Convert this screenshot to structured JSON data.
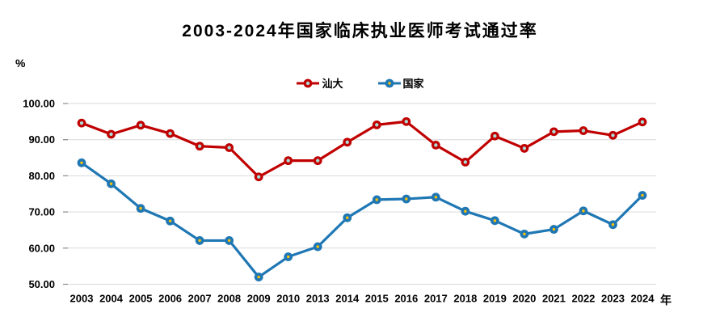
{
  "title": "2003-2024年国家临床执业医师考试通过率",
  "axes": {
    "y_unit_label": "%",
    "x_unit_label": "年"
  },
  "colors": {
    "shanda_red": "#C00000",
    "guojia_blue": "#1F77B4",
    "shanda_marker_fill": "#A9DCD6",
    "guojia_marker_dot": "#FFC000",
    "gridline": "#D9D9D9",
    "tick": "#8C8C8C",
    "text": "#000000",
    "background": "#FFFFFF"
  },
  "chart_data": {
    "type": "line",
    "title": "2003-2024年国家临床执业医师考试通过率",
    "xlabel": "年",
    "ylabel": "%",
    "ylim": [
      50,
      100
    ],
    "grid": true,
    "legend_position": "top-center",
    "y_ticks": [
      "100.00",
      "90.00",
      "80.00",
      "70.00",
      "60.00",
      "50.00"
    ],
    "categories": [
      "2003",
      "2004",
      "2005",
      "2006",
      "2007",
      "2008",
      "2009",
      "2010",
      "2013",
      "2014",
      "2015",
      "2016",
      "2017",
      "2018",
      "2019",
      "2020",
      "2021",
      "2022",
      "2023",
      "2024"
    ],
    "series": [
      {
        "name": "汕大",
        "color": "#C00000",
        "marker": {
          "shape": "circle",
          "fill": "#A9DCD6",
          "stroke": "#C00000"
        },
        "values": [
          94.6,
          91.5,
          94.0,
          91.7,
          88.2,
          87.8,
          79.7,
          84.2,
          84.2,
          89.3,
          94.1,
          95.0,
          88.5,
          83.8,
          91.0,
          87.6,
          92.2,
          92.5,
          91.2,
          94.9
        ]
      },
      {
        "name": "国家",
        "color": "#1F77B4",
        "marker": {
          "shape": "circle",
          "fill": "#1F77B4",
          "stroke": "#1F77B4",
          "center_dot": "#FFC000"
        },
        "values": [
          83.6,
          77.8,
          71.0,
          67.5,
          62.1,
          62.1,
          52.0,
          57.6,
          60.4,
          68.4,
          73.4,
          73.6,
          74.1,
          70.2,
          67.6,
          63.9,
          65.2,
          70.3,
          66.5,
          74.6
        ]
      }
    ]
  }
}
